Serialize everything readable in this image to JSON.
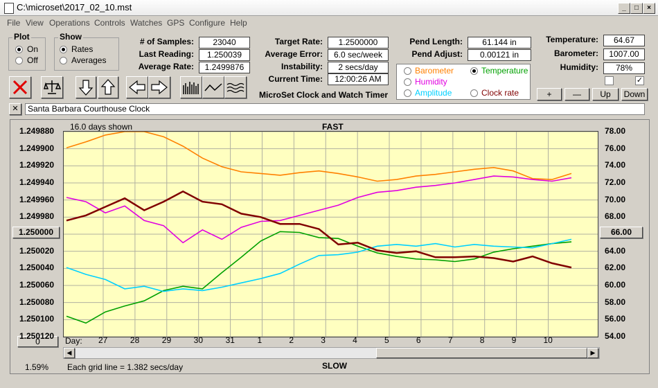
{
  "window": {
    "title": "C:\\microset\\2017_02_10.mst"
  },
  "menu": [
    "File",
    "View",
    "Operations",
    "Controls",
    "Watches",
    "GPS",
    "Configure",
    "Help"
  ],
  "plot_group": {
    "title": "Plot",
    "options": [
      "On",
      "Off"
    ],
    "selected": "On"
  },
  "show_group": {
    "title": "Show",
    "options": [
      "Rates",
      "Averages"
    ],
    "selected": "Rates"
  },
  "stats": {
    "samples_label": "# of Samples:",
    "samples": "23040",
    "last_label": "Last Reading:",
    "last": "1.250039",
    "avg_label": "Average Rate:",
    "avg": "1.2499876"
  },
  "targets": {
    "target_label": "Target Rate:",
    "target": "1.2500000",
    "err_label": "Average Error:",
    "err": "6.0 sec/week",
    "inst_label": "Instability:",
    "inst": "2 secs/day",
    "time_label": "Current Time:",
    "time": "12:00:26 AM",
    "app_name": "MicroSet Clock and Watch Timer"
  },
  "pend": {
    "len_label": "Pend Length:",
    "len": "61.144 in",
    "adj_label": "Pend Adjust:",
    "adj": "0.00121 in"
  },
  "env": {
    "temp_label": "Temperature:",
    "temp": "64.67",
    "baro_label": "Barometer:",
    "baro": "1007.00",
    "hum_label": "Humidity:",
    "hum": "78%"
  },
  "series_select": {
    "options": [
      {
        "label": "Barometer",
        "color": "#ff8000"
      },
      {
        "label": "Temperature",
        "color": "#00a000",
        "selected": true
      },
      {
        "label": "Humidity",
        "color": "#e000e0"
      },
      {
        "label": "Amplitude",
        "color": "#00d0ff"
      },
      {
        "label": "Clock rate",
        "color": "#800000"
      }
    ]
  },
  "zoom_buttons": {
    "plus": "+",
    "minus": "—",
    "up": "Up",
    "down": "Down"
  },
  "clock_name": "Santa Barbara Courthouse Clock",
  "chart": {
    "days_shown": "16.0 days shown",
    "fast": "FAST",
    "slow": "SLOW",
    "day_label": "Day:",
    "grid_note": "Each grid line = 1.382 secs/day",
    "left_center": "1.250000",
    "right_center": "66.00",
    "zero_btn": "0",
    "pct": "1.59%"
  },
  "chart_data": {
    "type": "line",
    "x_ticks": [
      "27",
      "28",
      "29",
      "30",
      "31",
      "1",
      "2",
      "3",
      "4",
      "5",
      "6",
      "7",
      "8",
      "9",
      "10"
    ],
    "y_left_ticks": [
      "1.249880",
      "1.249900",
      "1.249920",
      "1.249940",
      "1.249960",
      "1.249980",
      "",
      "1.250020",
      "1.250040",
      "1.250060",
      "1.250080",
      "1.250100",
      "1.250120"
    ],
    "y_right_ticks": [
      "78.00",
      "76.00",
      "74.00",
      "72.00",
      "70.00",
      "68.00",
      "",
      "64.00",
      "62.00",
      "60.00",
      "58.00",
      "56.00",
      "54.00"
    ],
    "series": [
      {
        "name": "Barometer",
        "color": "#ff8000",
        "values": [
          76.1,
          76.8,
          77.6,
          78,
          78,
          77.4,
          76.3,
          74.9,
          73.9,
          73.3,
          73.1,
          72.9,
          73.2,
          73.4,
          73.1,
          72.7,
          72.2,
          72.4,
          72.8,
          73,
          73.3,
          73.6,
          73.8,
          73.4,
          72.5,
          72.4,
          73.1
        ]
      },
      {
        "name": "Temperature",
        "color": "#00a000",
        "values": [
          56.4,
          55.6,
          56.9,
          57.6,
          58.2,
          59.4,
          59.9,
          59.6,
          61.5,
          63.3,
          65.2,
          66.3,
          66.2,
          65.6,
          65.5,
          64.6,
          63.8,
          63.4,
          63.1,
          63,
          62.8,
          63.1,
          63.9,
          64.3,
          64.6,
          64.9,
          65.1
        ]
      },
      {
        "name": "Humidity",
        "color": "#e000e0",
        "values": [
          70.3,
          69.8,
          68.5,
          69.3,
          67.6,
          67,
          65,
          66.5,
          65.4,
          66.8,
          67.5,
          67.6,
          68.2,
          68.8,
          69.4,
          70.3,
          70.9,
          71.1,
          71.5,
          71.7,
          72,
          72.4,
          72.8,
          72.7,
          72.4,
          72.2,
          72.6
        ]
      },
      {
        "name": "Amplitude",
        "color": "#00d0ff",
        "values": [
          62.1,
          61.3,
          60.7,
          59.6,
          59.9,
          59.3,
          59.6,
          59.4,
          59.8,
          60.3,
          60.8,
          61.4,
          62.5,
          63.5,
          63.6,
          63.9,
          64.6,
          64.8,
          64.6,
          64.9,
          64.5,
          64.8,
          64.6,
          64.5,
          64.4,
          64.9,
          65.4
        ]
      },
      {
        "name": "Clock rate",
        "color": "#800000",
        "values": [
          1.249984,
          1.249978,
          1.249968,
          1.249958,
          1.249972,
          1.249962,
          1.24995,
          1.249962,
          1.249965,
          1.249976,
          1.24998,
          1.249988,
          1.249988,
          1.249994,
          1.250012,
          1.25001,
          1.250019,
          1.250022,
          1.25002,
          1.250027,
          1.250027,
          1.250026,
          1.250028,
          1.250032,
          1.250026,
          1.250034,
          1.250039
        ]
      }
    ]
  }
}
